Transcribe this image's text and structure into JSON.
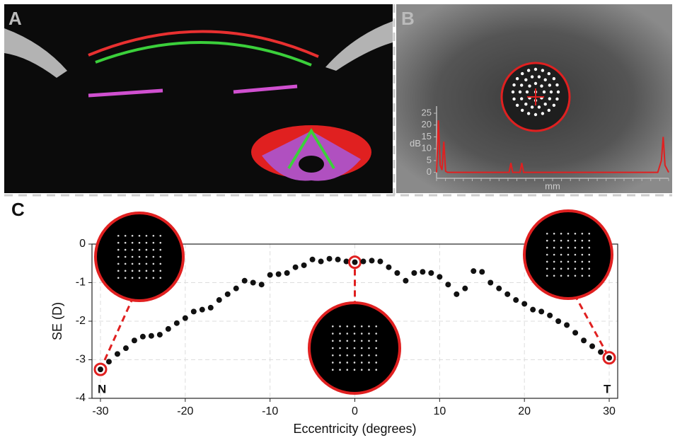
{
  "panels": {
    "a": "A",
    "b": "B",
    "c": "C"
  },
  "chart_data": [
    {
      "type": "line",
      "ylabel": "dB",
      "xlabel": "mm",
      "color": "#e02020",
      "x": [
        0,
        0.5,
        1,
        1.5,
        2,
        2.5,
        3,
        3.5,
        4,
        20,
        20.5,
        21,
        23,
        23.5,
        24,
        61,
        62,
        62.5,
        63,
        64
      ],
      "values": [
        0,
        22,
        3,
        1,
        13,
        0.5,
        0,
        0,
        0,
        0,
        4,
        0,
        0,
        4,
        0,
        0,
        5,
        15,
        3,
        0
      ],
      "xlim": [
        0,
        64
      ],
      "ylim": [
        -2.5,
        28
      ],
      "yticks": [
        0,
        5,
        10,
        15,
        20,
        25
      ]
    },
    {
      "type": "scatter",
      "xlabel": "Eccentricity (degrees)",
      "ylabel": "SE (D)",
      "color": "#111111",
      "highlight_color": "#e02020",
      "highlighted_points": [
        0,
        30,
        60
      ],
      "annotations": [
        "N",
        "T"
      ],
      "x": [
        -30,
        -29,
        -28,
        -27,
        -26,
        -25,
        -24,
        -23,
        -22,
        -21,
        -20,
        -19,
        -18,
        -17,
        -16,
        -15,
        -14,
        -13,
        -12,
        -11,
        -10,
        -9,
        -8,
        -7,
        -6,
        -5,
        -4,
        -3,
        -2,
        -1,
        0,
        1,
        2,
        3,
        4,
        5,
        6,
        7,
        8,
        9,
        10,
        11,
        12,
        13,
        14,
        15,
        16,
        17,
        18,
        19,
        20,
        21,
        22,
        23,
        24,
        25,
        26,
        27,
        28,
        29,
        30
      ],
      "values": [
        -3.25,
        -3.05,
        -2.85,
        -2.7,
        -2.5,
        -2.4,
        -2.38,
        -2.35,
        -2.2,
        -2.05,
        -1.92,
        -1.75,
        -1.7,
        -1.65,
        -1.45,
        -1.3,
        -1.15,
        -0.95,
        -1.0,
        -1.05,
        -0.8,
        -0.78,
        -0.75,
        -0.6,
        -0.55,
        -0.4,
        -0.45,
        -0.38,
        -0.4,
        -0.45,
        -0.47,
        -0.45,
        -0.43,
        -0.45,
        -0.6,
        -0.75,
        -0.95,
        -0.75,
        -0.72,
        -0.75,
        -0.85,
        -1.05,
        -1.3,
        -1.15,
        -0.7,
        -0.72,
        -1.0,
        -1.15,
        -1.3,
        -1.45,
        -1.55,
        -1.7,
        -1.75,
        -1.85,
        -2.0,
        -2.1,
        -2.3,
        -2.5,
        -2.65,
        -2.8,
        -2.95
      ],
      "xlim": [
        -31,
        31
      ],
      "ylim": [
        -4,
        0
      ],
      "xticks": [
        -30,
        -20,
        -10,
        0,
        10,
        20,
        30
      ],
      "yticks": [
        -4,
        -3,
        -2,
        -1,
        0
      ],
      "grid": true
    }
  ]
}
